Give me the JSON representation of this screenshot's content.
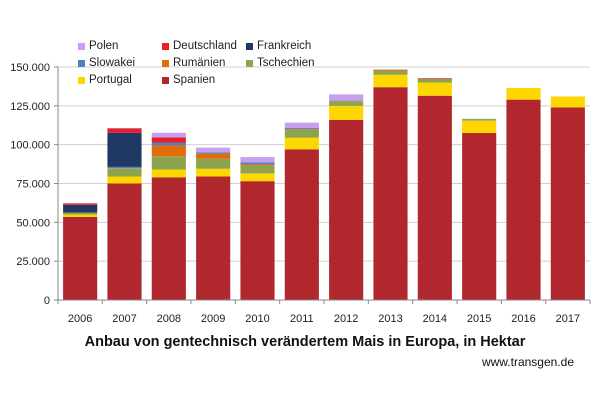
{
  "chart_data": {
    "type": "bar",
    "stacked": true,
    "title": "Anbau von gentechnisch verändertem Mais in Europa, in Hektar",
    "source": "www.transgen.de",
    "ylim": [
      0,
      150000
    ],
    "yticks": [
      0,
      25000,
      50000,
      75000,
      100000,
      125000,
      150000
    ],
    "ytick_labels": [
      "0",
      "25.000",
      "50.000",
      "75.000",
      "100.000",
      "125.000",
      "150.000"
    ],
    "grid": true,
    "legend_position": "top-left",
    "categories": [
      "2006",
      "2007",
      "2008",
      "2009",
      "2010",
      "2011",
      "2012",
      "2013",
      "2014",
      "2015",
      "2016",
      "2017"
    ],
    "series": [
      {
        "name": "Spanien",
        "color": "#b0272d",
        "values": [
          53500,
          75000,
          79000,
          79500,
          76500,
          97000,
          116000,
          137000,
          131500,
          107500,
          129000,
          124000
        ]
      },
      {
        "name": "Portugal",
        "color": "#ffd700",
        "values": [
          1500,
          4500,
          5000,
          5000,
          5000,
          7500,
          9000,
          8000,
          8500,
          8000,
          7500,
          7000
        ]
      },
      {
        "name": "Tschechien",
        "color": "#8da44e",
        "values": [
          1300,
          5000,
          8500,
          6500,
          5000,
          5000,
          3000,
          2500,
          1700,
          1000,
          0,
          0
        ]
      },
      {
        "name": "Rumänien",
        "color": "#e36c0a",
        "values": [
          0,
          300,
          7000,
          3200,
          800,
          500,
          200,
          800,
          800,
          0,
          0,
          0
        ]
      },
      {
        "name": "Slowakei",
        "color": "#4f81bd",
        "values": [
          0,
          900,
          1900,
          900,
          1200,
          700,
          200,
          100,
          400,
          100,
          0,
          0
        ]
      },
      {
        "name": "Frankreich",
        "color": "#1f3864",
        "values": [
          5000,
          22000,
          0,
          0,
          0,
          0,
          0,
          0,
          0,
          0,
          0,
          0
        ]
      },
      {
        "name": "Deutschland",
        "color": "#ee1c25",
        "values": [
          900,
          2700,
          3200,
          0,
          0,
          0,
          0,
          0,
          0,
          0,
          0,
          0
        ]
      },
      {
        "name": "Polen",
        "color": "#c79fef",
        "values": [
          100,
          300,
          3000,
          3000,
          3500,
          3500,
          4000,
          0,
          0,
          0,
          0,
          0
        ]
      }
    ],
    "legend_order": [
      "Polen",
      "Deutschland",
      "Frankreich",
      "Slowakei",
      "Rumänien",
      "Tschechien",
      "Portugal",
      "Spanien"
    ]
  }
}
